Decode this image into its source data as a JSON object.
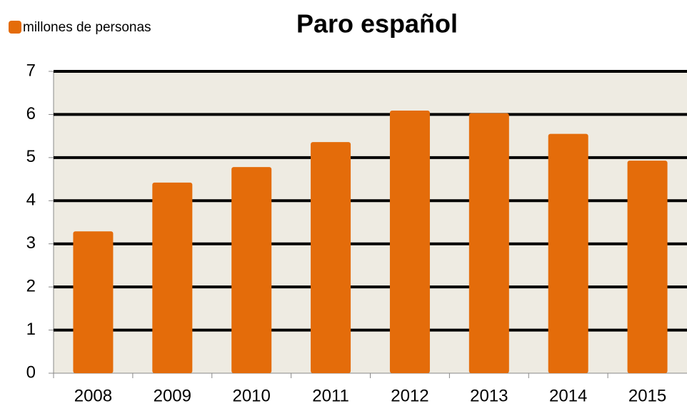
{
  "chart_data": {
    "type": "bar",
    "title": "Paro español",
    "categories": [
      "2008",
      "2009",
      "2010",
      "2011",
      "2012",
      "2013",
      "2014",
      "2015"
    ],
    "series": [
      {
        "name": "millones de personas",
        "color": "#e46c0a",
        "values": [
          3.29,
          4.42,
          4.78,
          5.36,
          6.09,
          6.03,
          5.55,
          4.93
        ]
      }
    ],
    "ylim": [
      0,
      7
    ],
    "yticks": [
      0,
      1,
      2,
      3,
      4,
      5,
      6,
      7
    ],
    "grid": true,
    "legend": "top-left"
  }
}
